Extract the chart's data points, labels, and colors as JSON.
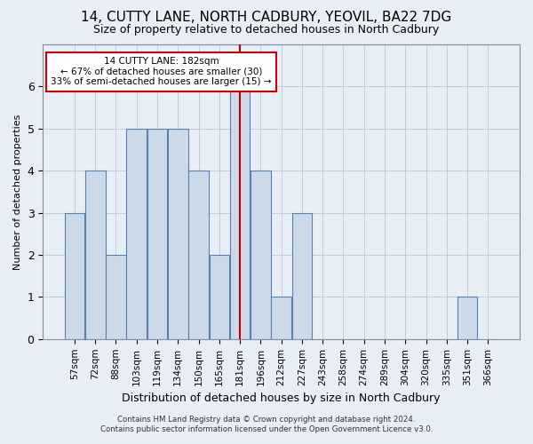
{
  "title1": "14, CUTTY LANE, NORTH CADBURY, YEOVIL, BA22 7DG",
  "title2": "Size of property relative to detached houses in North Cadbury",
  "xlabel": "Distribution of detached houses by size in North Cadbury",
  "ylabel": "Number of detached properties",
  "bin_labels": [
    "57sqm",
    "72sqm",
    "88sqm",
    "103sqm",
    "119sqm",
    "134sqm",
    "150sqm",
    "165sqm",
    "181sqm",
    "196sqm",
    "212sqm",
    "227sqm",
    "243sqm",
    "258sqm",
    "274sqm",
    "289sqm",
    "304sqm",
    "320sqm",
    "335sqm",
    "351sqm",
    "366sqm"
  ],
  "bar_heights": [
    3,
    4,
    2,
    5,
    5,
    5,
    4,
    2,
    6,
    4,
    1,
    3,
    0,
    0,
    0,
    0,
    0,
    0,
    0,
    1,
    0
  ],
  "bar_color": "#cdd9e8",
  "bar_edge_color": "#5580b0",
  "highlight_index": 8,
  "highlight_line_color": "#c00000",
  "ylim": [
    0,
    7
  ],
  "yticks": [
    0,
    1,
    2,
    3,
    4,
    5,
    6,
    7
  ],
  "annotation_text": "14 CUTTY LANE: 182sqm\n← 67% of detached houses are smaller (30)\n33% of semi-detached houses are larger (15) →",
  "annotation_box_color": "#ffffff",
  "annotation_border_color": "#cc0000",
  "footer1": "Contains HM Land Registry data © Crown copyright and database right 2024.",
  "footer2": "Contains public sector information licensed under the Open Government Licence v3.0.",
  "background_color": "#e8eef5",
  "plot_background": "#e8eef5",
  "title1_fontsize": 11,
  "title2_fontsize": 9,
  "xlabel_fontsize": 9,
  "ylabel_fontsize": 8
}
